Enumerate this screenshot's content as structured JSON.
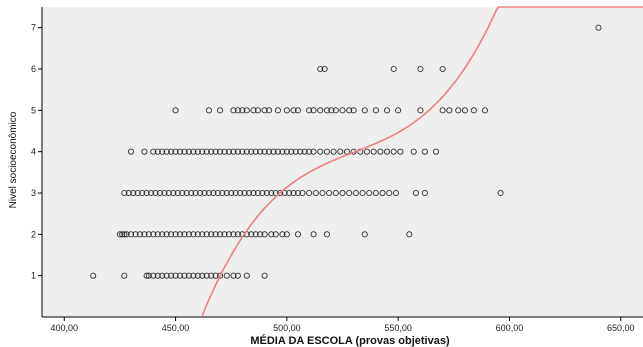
{
  "chart_data": {
    "type": "scatter",
    "title": "",
    "xlabel": "MÉDIA DA ESCOLA (provas objetivas)",
    "ylabel": "Nivel socioeconômico",
    "xlim": [
      390,
      660
    ],
    "ylim": [
      0,
      7.5
    ],
    "x_ticks": [
      400,
      450,
      500,
      550,
      600,
      650
    ],
    "x_tick_labels": [
      "400,00",
      "450,00",
      "500,00",
      "550,00",
      "600,00",
      "650,00"
    ],
    "y_ticks": [
      1,
      2,
      3,
      4,
      5,
      6,
      7
    ],
    "y_tick_labels": [
      "1",
      "2",
      "3",
      "4",
      "5",
      "6",
      "7"
    ],
    "grid": false,
    "colors": {
      "plot_background": "#eeeeee",
      "marker": "#333333",
      "fit_line": "#f08080"
    },
    "series": [
      {
        "type": "scatter",
        "marker": "open-circle",
        "points": [
          {
            "y": 1,
            "x": [
              413,
              427,
              437,
              438,
              440,
              442,
              444,
              446,
              448,
              450,
              452,
              454,
              456,
              458,
              460,
              462,
              464,
              466,
              468,
              470,
              473,
              476,
              478,
              482,
              490
            ]
          },
          {
            "y": 2,
            "x": [
              425,
              426,
              427,
              428,
              430,
              432,
              434,
              436,
              438,
              440,
              442,
              444,
              446,
              448,
              450,
              452,
              454,
              456,
              458,
              460,
              462,
              464,
              466,
              468,
              470,
              472,
              474,
              476,
              478,
              480,
              482,
              484,
              486,
              488,
              490,
              493,
              495,
              498,
              500,
              505,
              512,
              518,
              535,
              555
            ]
          },
          {
            "y": 3,
            "x": [
              427,
              429,
              431,
              433,
              435,
              437,
              439,
              441,
              443,
              445,
              447,
              449,
              451,
              453,
              455,
              457,
              459,
              461,
              463,
              465,
              467,
              469,
              471,
              473,
              475,
              477,
              479,
              481,
              483,
              485,
              487,
              489,
              491,
              493,
              495,
              497,
              499,
              501,
              503,
              505,
              507,
              510,
              513,
              516,
              519,
              522,
              525,
              528,
              531,
              534,
              537,
              540,
              543,
              546,
              549,
              558,
              562,
              596
            ]
          },
          {
            "y": 4,
            "x": [
              430,
              436,
              440,
              442,
              444,
              446,
              448,
              450,
              452,
              454,
              456,
              458,
              460,
              462,
              464,
              466,
              468,
              470,
              472,
              474,
              476,
              478,
              480,
              482,
              484,
              486,
              488,
              490,
              492,
              494,
              496,
              498,
              500,
              502,
              504,
              506,
              508,
              510,
              512,
              515,
              518,
              521,
              524,
              527,
              530,
              533,
              536,
              539,
              542,
              545,
              548,
              551,
              557,
              562,
              567
            ]
          },
          {
            "y": 5,
            "x": [
              450,
              465,
              470,
              476,
              478,
              480,
              482,
              485,
              487,
              490,
              492,
              496,
              500,
              503,
              505,
              510,
              512,
              515,
              518,
              520,
              522,
              525,
              528,
              530,
              535,
              540,
              545,
              550,
              560,
              570,
              573,
              577,
              580,
              584,
              589
            ]
          },
          {
            "y": 6,
            "x": [
              515,
              517,
              548,
              560,
              570
            ]
          },
          {
            "y": 7,
            "x": [
              640
            ]
          }
        ]
      },
      {
        "type": "line",
        "fit": "cubic",
        "equation_hint": "y = 3.5 + 0.0306*(x-510) - 4.82e-4*(x-510)^2 + 8.0e-6*(x-510)^3",
        "coefficients_centered_at": 510,
        "coefficients": [
          3.5,
          0.0306,
          -0.000482,
          8e-06
        ],
        "x_range": [
          400,
          660
        ]
      }
    ]
  }
}
